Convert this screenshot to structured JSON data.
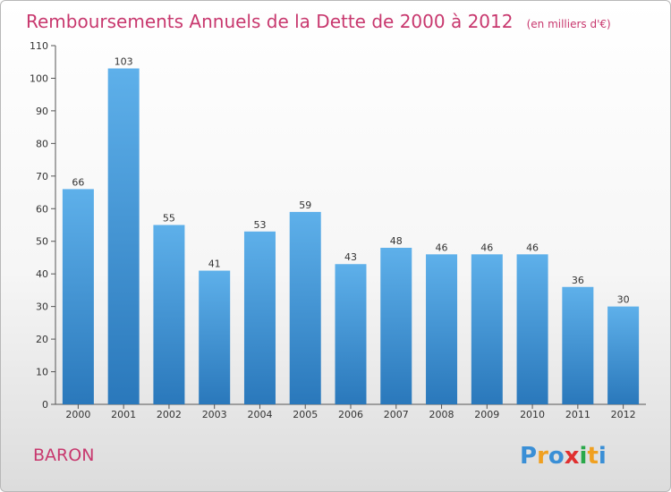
{
  "chart_data": {
    "type": "bar",
    "title": "Remboursements Annuels de la Dette de 2000 à 2012",
    "subtitle": "(en milliers d'€)",
    "categories": [
      "2000",
      "2001",
      "2002",
      "2003",
      "2004",
      "2005",
      "2006",
      "2007",
      "2008",
      "2009",
      "2010",
      "2011",
      "2012"
    ],
    "values": [
      66,
      103,
      55,
      41,
      53,
      59,
      43,
      48,
      46,
      46,
      46,
      36,
      30
    ],
    "xlabel": "",
    "ylabel": "",
    "ylim": [
      0,
      110
    ],
    "yticks": [
      0,
      10,
      20,
      30,
      40,
      50,
      60,
      70,
      80,
      90,
      100,
      110
    ],
    "grid": false,
    "bar_color_light": "#5eb0ea",
    "bar_color_dark": "#2a78bb",
    "axis_color": "#555555"
  },
  "footer": {
    "city": "BARON",
    "brand_letters": [
      "P",
      "r",
      "o",
      "x",
      "i",
      "t",
      "i"
    ],
    "brand_colors": [
      "#3a8fd6",
      "#f0a020",
      "#3a8fd6",
      "#e03030",
      "#2aa84a",
      "#f0a020",
      "#3a8fd6"
    ]
  }
}
